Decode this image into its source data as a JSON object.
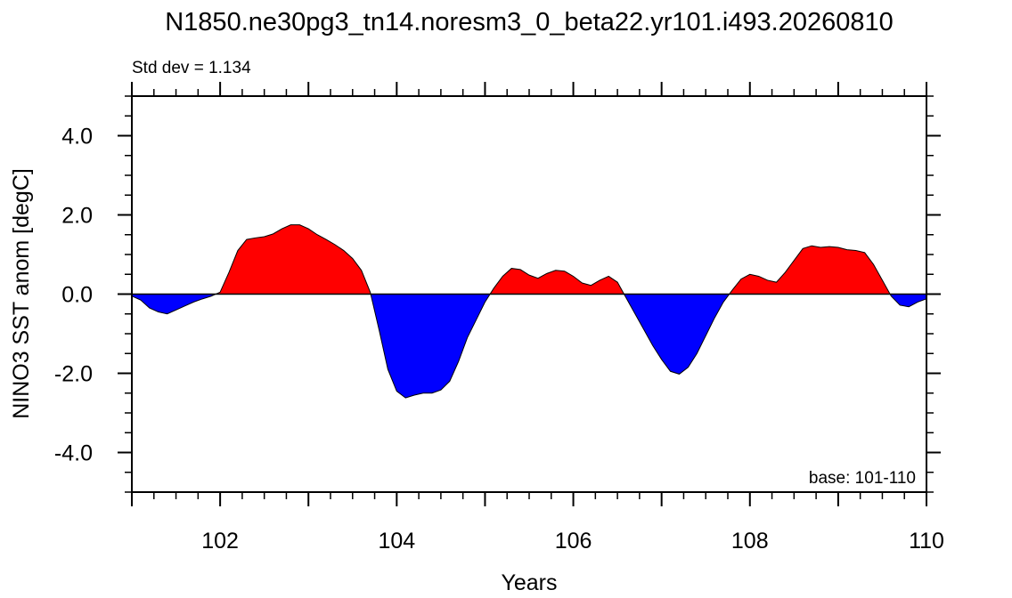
{
  "chart_data": {
    "type": "area",
    "title": "N1850.ne30pg3_tn14.noresm3_0_beta22.yr101.i493.20260810",
    "subtitle_left": "Std dev = 1.134",
    "annotation": "base: 101-110",
    "xlabel": "Years",
    "ylabel": "NINO3 SST anom [degC]",
    "xlim": [
      101,
      110
    ],
    "ylim": [
      -5,
      5
    ],
    "xticks": [
      102,
      104,
      106,
      108,
      110
    ],
    "xtick_labels": [
      "102",
      "104",
      "106",
      "108",
      "110"
    ],
    "yticks": [
      4,
      2,
      0,
      -2,
      -4
    ],
    "ytick_labels": [
      "4.0",
      "2.0",
      "0.0",
      "-2.0",
      "-4.0"
    ],
    "baseline": 0,
    "positive_color": "#ff0000",
    "negative_color": "#0000ff",
    "x": [
      101.0,
      101.1,
      101.2,
      101.3,
      101.4,
      101.5,
      101.6,
      101.7,
      101.8,
      101.9,
      102.0,
      102.1,
      102.2,
      102.3,
      102.4,
      102.5,
      102.6,
      102.7,
      102.8,
      102.9,
      103.0,
      103.1,
      103.2,
      103.3,
      103.4,
      103.5,
      103.6,
      103.7,
      103.8,
      103.9,
      104.0,
      104.1,
      104.2,
      104.3,
      104.4,
      104.5,
      104.6,
      104.7,
      104.8,
      104.9,
      105.0,
      105.1,
      105.2,
      105.3,
      105.4,
      105.5,
      105.6,
      105.7,
      105.8,
      105.9,
      106.0,
      106.1,
      106.2,
      106.3,
      106.4,
      106.5,
      106.6,
      106.7,
      106.8,
      106.9,
      107.0,
      107.1,
      107.2,
      107.3,
      107.4,
      107.5,
      107.6,
      107.7,
      107.8,
      107.9,
      108.0,
      108.1,
      108.2,
      108.3,
      108.4,
      108.5,
      108.6,
      108.7,
      108.8,
      108.9,
      109.0,
      109.1,
      109.2,
      109.3,
      109.4,
      109.5,
      109.6,
      109.7,
      109.8,
      109.9,
      110.0
    ],
    "values": [
      -0.05,
      -0.15,
      -0.35,
      -0.45,
      -0.5,
      -0.4,
      -0.3,
      -0.2,
      -0.12,
      -0.05,
      0.05,
      0.55,
      1.1,
      1.38,
      1.42,
      1.45,
      1.52,
      1.65,
      1.75,
      1.75,
      1.65,
      1.5,
      1.38,
      1.25,
      1.1,
      0.9,
      0.6,
      0.05,
      -0.9,
      -1.9,
      -2.45,
      -2.62,
      -2.55,
      -2.5,
      -2.5,
      -2.42,
      -2.2,
      -1.7,
      -1.1,
      -0.65,
      -0.2,
      0.15,
      0.45,
      0.65,
      0.62,
      0.48,
      0.4,
      0.52,
      0.6,
      0.58,
      0.45,
      0.28,
      0.22,
      0.35,
      0.45,
      0.3,
      -0.1,
      -0.5,
      -0.9,
      -1.3,
      -1.65,
      -1.95,
      -2.02,
      -1.85,
      -1.5,
      -1.05,
      -0.6,
      -0.2,
      0.1,
      0.38,
      0.5,
      0.45,
      0.35,
      0.3,
      0.55,
      0.85,
      1.15,
      1.22,
      1.18,
      1.2,
      1.18,
      1.12,
      1.1,
      1.05,
      0.75,
      0.35,
      -0.05,
      -0.28,
      -0.32,
      -0.2,
      -0.12
    ]
  }
}
